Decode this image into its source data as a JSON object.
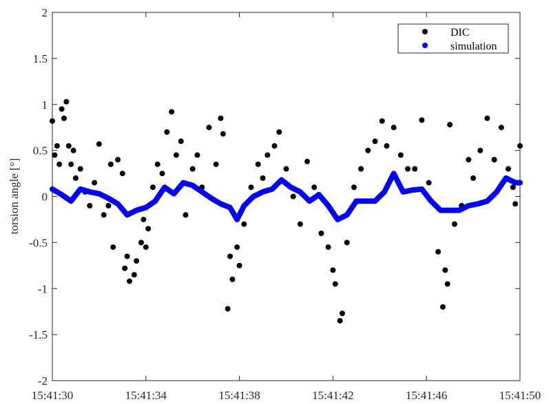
{
  "chart_data": {
    "type": "scatter",
    "title": "",
    "xlabel": "",
    "ylabel": "torsion angle [°]",
    "xlim": [
      "15:41:30",
      "15:41:50"
    ],
    "ylim": [
      -2,
      2
    ],
    "x_tick_labels": [
      "15:41:30",
      "15:41:34",
      "15:41:38",
      "15:41:42",
      "15:41:46",
      "15:41:50"
    ],
    "y_tick_labels": [
      "-2",
      "-1.5",
      "-1",
      "-0.5",
      "0",
      "0.5",
      "1",
      "1.5",
      "2"
    ],
    "y_ticks": [
      -2,
      -1.5,
      -1,
      -0.5,
      0,
      0.5,
      1,
      1.5,
      2
    ],
    "grid": false,
    "legend_position": "top-right",
    "colors": {
      "DIC": "#000000",
      "simulation": "#0000ff",
      "axes": "#262626"
    },
    "series": [
      {
        "name": "DIC",
        "points": [
          [
            "15:41:30.0",
            0.82
          ],
          [
            "15:41:30.1",
            0.45
          ],
          [
            "15:41:30.2",
            0.55
          ],
          [
            "15:41:30.3",
            0.35
          ],
          [
            "15:41:30.4",
            0.95
          ],
          [
            "15:41:30.5",
            0.85
          ],
          [
            "15:41:30.6",
            1.03
          ],
          [
            "15:41:30.7",
            0.55
          ],
          [
            "15:41:30.8",
            0.35
          ],
          [
            "15:41:30.9",
            0.5
          ],
          [
            "15:41:31.0",
            0.2
          ],
          [
            "15:41:31.2",
            0.3
          ],
          [
            "15:41:31.4",
            0.05
          ],
          [
            "15:41:31.6",
            -0.1
          ],
          [
            "15:41:31.8",
            0.15
          ],
          [
            "15:41:32.0",
            0.57
          ],
          [
            "15:41:32.2",
            -0.2
          ],
          [
            "15:41:32.4",
            -0.1
          ],
          [
            "15:41:32.5",
            0.35
          ],
          [
            "15:41:32.6",
            -0.55
          ],
          [
            "15:41:32.8",
            0.4
          ],
          [
            "15:41:33.0",
            0.25
          ],
          [
            "15:41:33.1",
            -0.78
          ],
          [
            "15:41:33.2",
            -0.65
          ],
          [
            "15:41:33.3",
            -0.92
          ],
          [
            "15:41:33.5",
            -0.85
          ],
          [
            "15:41:33.6",
            -0.7
          ],
          [
            "15:41:33.8",
            -0.5
          ],
          [
            "15:41:33.9",
            -0.25
          ],
          [
            "15:41:34.0",
            -0.55
          ],
          [
            "15:41:34.1",
            -0.35
          ],
          [
            "15:41:34.3",
            0.1
          ],
          [
            "15:41:34.5",
            0.35
          ],
          [
            "15:41:34.7",
            0.25
          ],
          [
            "15:41:34.9",
            0.7
          ],
          [
            "15:41:35.1",
            0.92
          ],
          [
            "15:41:35.3",
            0.45
          ],
          [
            "15:41:35.5",
            0.6
          ],
          [
            "15:41:35.7",
            -0.2
          ],
          [
            "15:41:36.0",
            0.3
          ],
          [
            "15:41:36.2",
            0.45
          ],
          [
            "15:41:36.4",
            0.1
          ],
          [
            "15:41:36.7",
            0.75
          ],
          [
            "15:41:37.0",
            0.35
          ],
          [
            "15:41:37.2",
            0.85
          ],
          [
            "15:41:37.3",
            0.68
          ],
          [
            "15:41:37.5",
            -1.22
          ],
          [
            "15:41:37.6",
            -0.65
          ],
          [
            "15:41:37.7",
            -0.9
          ],
          [
            "15:41:37.9",
            -0.55
          ],
          [
            "15:41:38.0",
            -0.75
          ],
          [
            "15:41:38.2",
            -0.3
          ],
          [
            "15:41:38.5",
            0.1
          ],
          [
            "15:41:38.8",
            0.35
          ],
          [
            "15:41:39.0",
            0.2
          ],
          [
            "15:41:39.2",
            0.45
          ],
          [
            "15:41:39.5",
            0.55
          ],
          [
            "15:41:39.7",
            0.7
          ],
          [
            "15:41:40.0",
            0.3
          ],
          [
            "15:41:40.3",
            0.0
          ],
          [
            "15:41:40.6",
            -0.3
          ],
          [
            "15:41:40.9",
            0.38
          ],
          [
            "15:41:41.2",
            0.1
          ],
          [
            "15:41:41.5",
            -0.4
          ],
          [
            "15:41:41.8",
            -0.55
          ],
          [
            "15:41:42.0",
            -0.8
          ],
          [
            "15:41:42.1",
            -0.95
          ],
          [
            "15:41:42.3",
            -1.35
          ],
          [
            "15:41:42.4",
            -1.27
          ],
          [
            "15:41:42.6",
            -0.5
          ],
          [
            "15:41:42.9",
            0.1
          ],
          [
            "15:41:43.2",
            0.3
          ],
          [
            "15:41:43.5",
            0.5
          ],
          [
            "15:41:43.8",
            0.6
          ],
          [
            "15:41:44.1",
            0.82
          ],
          [
            "15:41:44.3",
            0.55
          ],
          [
            "15:41:44.6",
            0.75
          ],
          [
            "15:41:44.9",
            0.45
          ],
          [
            "15:41:45.2",
            0.3
          ],
          [
            "15:41:45.5",
            0.3
          ],
          [
            "15:41:45.8",
            0.83
          ],
          [
            "15:41:46.1",
            0.15
          ],
          [
            "15:41:46.4",
            -0.1
          ],
          [
            "15:41:46.5",
            -0.6
          ],
          [
            "15:41:46.7",
            -1.2
          ],
          [
            "15:41:46.8",
            -0.8
          ],
          [
            "15:41:46.9",
            -0.95
          ],
          [
            "15:41:47.0",
            0.78
          ],
          [
            "15:41:47.2",
            -0.3
          ],
          [
            "15:41:47.5",
            -0.1
          ],
          [
            "15:41:47.8",
            0.4
          ],
          [
            "15:41:48.0",
            0.2
          ],
          [
            "15:41:48.3",
            0.5
          ],
          [
            "15:41:48.6",
            0.85
          ],
          [
            "15:41:48.9",
            0.4
          ],
          [
            "15:41:49.2",
            0.75
          ],
          [
            "15:41:49.5",
            0.3
          ],
          [
            "15:41:49.7",
            0.1
          ],
          [
            "15:41:49.8",
            -0.08
          ],
          [
            "15:41:50.0",
            0.55
          ]
        ]
      },
      {
        "name": "simulation",
        "points": [
          [
            "15:41:30.0",
            0.08
          ],
          [
            "15:41:30.4",
            0.02
          ],
          [
            "15:41:30.8",
            -0.05
          ],
          [
            "15:41:31.2",
            0.08
          ],
          [
            "15:41:31.6",
            0.05
          ],
          [
            "15:41:32.0",
            0.03
          ],
          [
            "15:41:32.4",
            -0.02
          ],
          [
            "15:41:32.8",
            -0.08
          ],
          [
            "15:41:33.2",
            -0.2
          ],
          [
            "15:41:33.6",
            -0.15
          ],
          [
            "15:41:34.0",
            -0.12
          ],
          [
            "15:41:34.4",
            -0.05
          ],
          [
            "15:41:34.8",
            0.1
          ],
          [
            "15:41:35.2",
            0.03
          ],
          [
            "15:41:35.6",
            0.15
          ],
          [
            "15:41:36.0",
            0.12
          ],
          [
            "15:41:36.4",
            0.05
          ],
          [
            "15:41:36.8",
            -0.02
          ],
          [
            "15:41:37.2",
            -0.08
          ],
          [
            "15:41:37.6",
            -0.12
          ],
          [
            "15:41:37.9",
            -0.25
          ],
          [
            "15:41:38.2",
            -0.1
          ],
          [
            "15:41:38.6",
            0.0
          ],
          [
            "15:41:39.0",
            0.05
          ],
          [
            "15:41:39.4",
            0.08
          ],
          [
            "15:41:39.8",
            0.18
          ],
          [
            "15:41:40.2",
            0.1
          ],
          [
            "15:41:40.6",
            0.05
          ],
          [
            "15:41:41.0",
            -0.05
          ],
          [
            "15:41:41.4",
            0.02
          ],
          [
            "15:41:41.8",
            -0.1
          ],
          [
            "15:41:42.2",
            -0.25
          ],
          [
            "15:41:42.6",
            -0.2
          ],
          [
            "15:41:43.0",
            -0.05
          ],
          [
            "15:41:43.4",
            -0.05
          ],
          [
            "15:41:43.8",
            -0.05
          ],
          [
            "15:41:44.2",
            0.05
          ],
          [
            "15:41:44.6",
            0.25
          ],
          [
            "15:41:45.0",
            0.05
          ],
          [
            "15:41:45.4",
            0.07
          ],
          [
            "15:41:45.8",
            0.08
          ],
          [
            "15:41:46.2",
            -0.05
          ],
          [
            "15:41:46.6",
            -0.15
          ],
          [
            "15:41:47.0",
            -0.15
          ],
          [
            "15:41:47.4",
            -0.15
          ],
          [
            "15:41:47.8",
            -0.1
          ],
          [
            "15:41:48.2",
            -0.08
          ],
          [
            "15:41:48.6",
            -0.05
          ],
          [
            "15:41:49.0",
            0.05
          ],
          [
            "15:41:49.4",
            0.2
          ],
          [
            "15:41:49.8",
            0.15
          ],
          [
            "15:41:50.0",
            0.15
          ]
        ]
      }
    ]
  }
}
